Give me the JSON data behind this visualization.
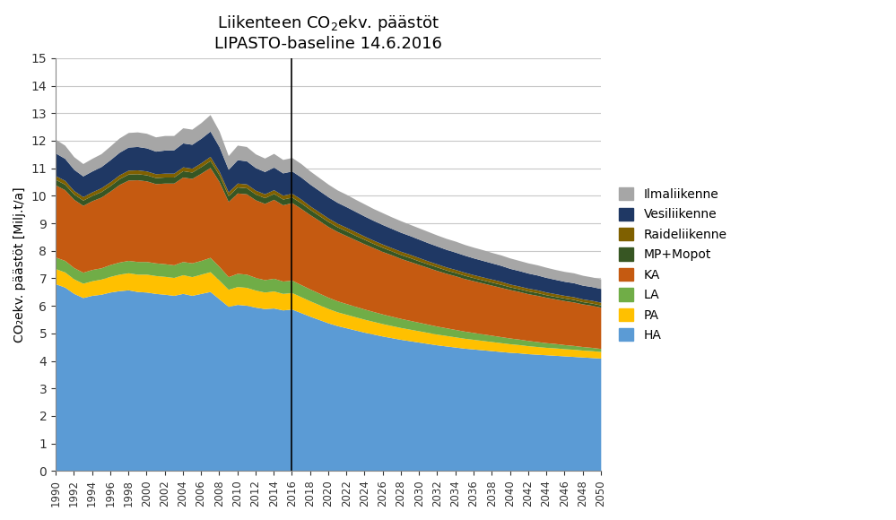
{
  "title_line1": "Liikenteen CO₂ekv. päästöt",
  "title_line2": "LIPASTO-baseline 14.6.2016",
  "ylabel": "CO₂ekv. päästöt [Milj.t/a]",
  "vline_year": 2016,
  "ylim": [
    0,
    15
  ],
  "yticks": [
    0,
    1,
    2,
    3,
    4,
    5,
    6,
    7,
    8,
    9,
    10,
    11,
    12,
    13,
    14,
    15
  ],
  "years": [
    1990,
    1991,
    1992,
    1993,
    1994,
    1995,
    1996,
    1997,
    1998,
    1999,
    2000,
    2001,
    2002,
    2003,
    2004,
    2005,
    2006,
    2007,
    2008,
    2009,
    2010,
    2011,
    2012,
    2013,
    2014,
    2015,
    2016,
    2017,
    2018,
    2019,
    2020,
    2021,
    2022,
    2023,
    2024,
    2025,
    2026,
    2027,
    2028,
    2029,
    2030,
    2031,
    2032,
    2033,
    2034,
    2035,
    2036,
    2037,
    2038,
    2039,
    2040,
    2041,
    2042,
    2043,
    2044,
    2045,
    2046,
    2047,
    2048,
    2049,
    2050
  ],
  "series": {
    "HA": [
      6.8,
      6.68,
      6.45,
      6.3,
      6.38,
      6.42,
      6.5,
      6.55,
      6.58,
      6.52,
      6.5,
      6.45,
      6.42,
      6.38,
      6.45,
      6.38,
      6.45,
      6.52,
      6.25,
      5.98,
      6.05,
      6.02,
      5.95,
      5.9,
      5.92,
      5.85,
      5.88,
      5.75,
      5.62,
      5.5,
      5.38,
      5.28,
      5.2,
      5.12,
      5.04,
      4.97,
      4.9,
      4.84,
      4.78,
      4.73,
      4.68,
      4.63,
      4.58,
      4.54,
      4.5,
      4.46,
      4.43,
      4.4,
      4.37,
      4.34,
      4.31,
      4.29,
      4.26,
      4.24,
      4.22,
      4.2,
      4.18,
      4.16,
      4.14,
      4.12,
      4.1
    ],
    "PA": [
      0.55,
      0.55,
      0.53,
      0.52,
      0.53,
      0.55,
      0.57,
      0.6,
      0.62,
      0.63,
      0.65,
      0.65,
      0.65,
      0.65,
      0.68,
      0.68,
      0.7,
      0.72,
      0.68,
      0.62,
      0.65,
      0.65,
      0.62,
      0.6,
      0.62,
      0.6,
      0.6,
      0.58,
      0.56,
      0.54,
      0.52,
      0.5,
      0.49,
      0.48,
      0.47,
      0.46,
      0.45,
      0.44,
      0.43,
      0.42,
      0.41,
      0.4,
      0.39,
      0.38,
      0.37,
      0.36,
      0.35,
      0.34,
      0.33,
      0.32,
      0.31,
      0.3,
      0.29,
      0.28,
      0.27,
      0.27,
      0.26,
      0.26,
      0.25,
      0.25,
      0.24
    ],
    "LA": [
      0.42,
      0.42,
      0.41,
      0.4,
      0.41,
      0.41,
      0.43,
      0.44,
      0.45,
      0.46,
      0.46,
      0.46,
      0.46,
      0.46,
      0.48,
      0.5,
      0.5,
      0.52,
      0.5,
      0.46,
      0.48,
      0.48,
      0.46,
      0.45,
      0.46,
      0.45,
      0.45,
      0.44,
      0.43,
      0.42,
      0.41,
      0.4,
      0.39,
      0.38,
      0.37,
      0.36,
      0.35,
      0.34,
      0.33,
      0.32,
      0.31,
      0.3,
      0.29,
      0.28,
      0.27,
      0.26,
      0.25,
      0.24,
      0.23,
      0.22,
      0.21,
      0.2,
      0.19,
      0.18,
      0.17,
      0.16,
      0.15,
      0.14,
      0.13,
      0.12,
      0.11
    ],
    "KA": [
      2.62,
      2.57,
      2.48,
      2.43,
      2.5,
      2.57,
      2.67,
      2.82,
      2.92,
      2.97,
      2.93,
      2.88,
      2.93,
      2.97,
      3.07,
      3.07,
      3.17,
      3.27,
      3.08,
      2.73,
      2.92,
      2.92,
      2.82,
      2.77,
      2.87,
      2.77,
      2.82,
      2.77,
      2.7,
      2.64,
      2.57,
      2.52,
      2.47,
      2.42,
      2.37,
      2.32,
      2.27,
      2.23,
      2.18,
      2.14,
      2.1,
      2.06,
      2.02,
      1.98,
      1.95,
      1.91,
      1.88,
      1.85,
      1.82,
      1.79,
      1.76,
      1.73,
      1.7,
      1.68,
      1.65,
      1.62,
      1.6,
      1.58,
      1.55,
      1.53,
      1.5
    ],
    "MP_Mopot": [
      0.2,
      0.2,
      0.19,
      0.19,
      0.19,
      0.2,
      0.2,
      0.21,
      0.22,
      0.22,
      0.22,
      0.22,
      0.22,
      0.22,
      0.23,
      0.23,
      0.24,
      0.25,
      0.24,
      0.21,
      0.22,
      0.22,
      0.21,
      0.21,
      0.21,
      0.21,
      0.2,
      0.2,
      0.19,
      0.18,
      0.18,
      0.17,
      0.17,
      0.16,
      0.16,
      0.15,
      0.15,
      0.14,
      0.14,
      0.14,
      0.13,
      0.13,
      0.13,
      0.12,
      0.12,
      0.12,
      0.11,
      0.11,
      0.11,
      0.11,
      0.1,
      0.1,
      0.1,
      0.1,
      0.09,
      0.09,
      0.09,
      0.09,
      0.08,
      0.08,
      0.08
    ],
    "Raideliikenne": [
      0.14,
      0.14,
      0.13,
      0.13,
      0.13,
      0.14,
      0.14,
      0.14,
      0.14,
      0.14,
      0.14,
      0.14,
      0.14,
      0.14,
      0.14,
      0.14,
      0.14,
      0.15,
      0.14,
      0.14,
      0.14,
      0.14,
      0.14,
      0.14,
      0.14,
      0.14,
      0.14,
      0.14,
      0.13,
      0.13,
      0.13,
      0.13,
      0.13,
      0.13,
      0.12,
      0.12,
      0.12,
      0.12,
      0.12,
      0.12,
      0.12,
      0.11,
      0.11,
      0.11,
      0.11,
      0.11,
      0.11,
      0.11,
      0.11,
      0.11,
      0.1,
      0.1,
      0.1,
      0.1,
      0.1,
      0.1,
      0.1,
      0.1,
      0.1,
      0.1,
      0.1
    ],
    "Vesiliikenne": [
      0.82,
      0.8,
      0.77,
      0.75,
      0.76,
      0.77,
      0.8,
      0.82,
      0.84,
      0.85,
      0.84,
      0.82,
      0.84,
      0.85,
      0.87,
      0.87,
      0.89,
      0.92,
      0.89,
      0.82,
      0.85,
      0.84,
      0.82,
      0.81,
      0.82,
      0.81,
      0.81,
      0.8,
      0.79,
      0.78,
      0.77,
      0.76,
      0.75,
      0.74,
      0.73,
      0.72,
      0.71,
      0.7,
      0.69,
      0.68,
      0.67,
      0.66,
      0.65,
      0.64,
      0.63,
      0.62,
      0.61,
      0.6,
      0.59,
      0.58,
      0.57,
      0.56,
      0.55,
      0.54,
      0.53,
      0.52,
      0.51,
      0.51,
      0.5,
      0.5,
      0.5
    ],
    "Ilmaliikenne": [
      0.5,
      0.48,
      0.46,
      0.45,
      0.46,
      0.47,
      0.5,
      0.52,
      0.53,
      0.53,
      0.53,
      0.52,
      0.53,
      0.52,
      0.55,
      0.55,
      0.57,
      0.6,
      0.57,
      0.5,
      0.53,
      0.52,
      0.5,
      0.49,
      0.5,
      0.49,
      0.49,
      0.49,
      0.48,
      0.47,
      0.46,
      0.45,
      0.45,
      0.44,
      0.44,
      0.43,
      0.43,
      0.42,
      0.42,
      0.41,
      0.41,
      0.41,
      0.4,
      0.4,
      0.4,
      0.39,
      0.39,
      0.39,
      0.38,
      0.38,
      0.38,
      0.37,
      0.37,
      0.37,
      0.37,
      0.36,
      0.36,
      0.36,
      0.36,
      0.35,
      0.35
    ]
  },
  "colors": {
    "HA": "#5B9BD5",
    "PA": "#FFC000",
    "LA": "#70AD47",
    "KA": "#C55A11",
    "MP_Mopot": "#375623",
    "Raideliikenne": "#7F6000",
    "Vesiliikenne": "#1F3864",
    "Ilmaliikenne": "#A6A6A6"
  },
  "legend_labels": {
    "HA": "HA",
    "PA": "PA",
    "LA": "LA",
    "KA": "KA",
    "MP_Mopot": "MP+Mopot",
    "Raideliikenne": "Raideliikenne",
    "Vesiliikenne": "Vesiliikenne",
    "Ilmaliikenne": "Ilmaliikenne"
  },
  "background_color": "#FFFFFF"
}
